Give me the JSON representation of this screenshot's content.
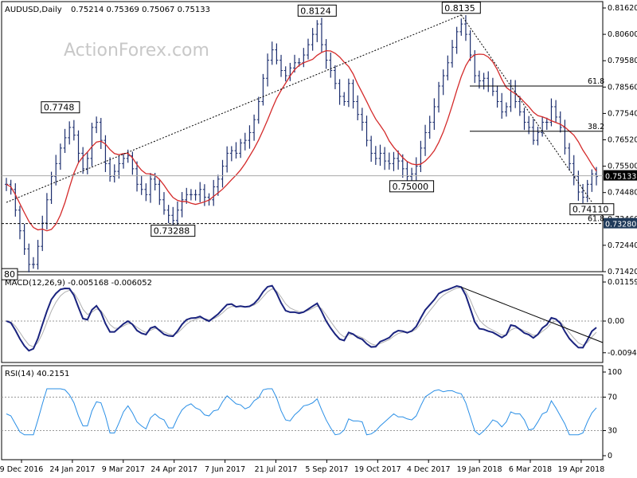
{
  "header": {
    "symbol": "AUDUSD,Daily",
    "ohlc": "0.75214 0.75369 0.75067 0.75133"
  },
  "watermark": "ActionForex.com",
  "macd_header": "MACD(12,26,9) -0.005168 -0.006052",
  "rsi_header": "RSI(14) 40.2151",
  "colors": {
    "price_bars": "#1c2e6e",
    "moving_average": "#d42a2a",
    "macd_line": "#1a237e",
    "macd_signal": "#b0b0b0",
    "rsi_line": "#2a8fe6",
    "grid": "#d0d0d0"
  },
  "chart_data": [
    {
      "type": "ohlc",
      "panel": "price",
      "y_ticks": [
        "0.81620",
        "0.80600",
        "0.79580",
        "0.78560",
        "0.77540",
        "0.76520",
        "0.75500",
        "0.74480",
        "0.73460",
        "0.72440",
        "0.71420"
      ],
      "current_price_label": "0.75133",
      "support_label": "0.73280",
      "ylim": [
        0.7142,
        0.8162
      ],
      "x_ticks": [
        "9 Dec 2016",
        "24 Jan 2017",
        "9 Mar 2017",
        "24 Apr 2017",
        "7 Jun 2017",
        "21 Jul 2017",
        "5 Sep 2017",
        "19 Oct 2017",
        "4 Dec 2017",
        "19 Jan 2018",
        "6 Mar 2018",
        "19 Apr 2018"
      ],
      "close_series": [
        0.748,
        0.746,
        0.738,
        0.73,
        0.723,
        0.717,
        0.717,
        0.724,
        0.733,
        0.742,
        0.751,
        0.756,
        0.762,
        0.766,
        0.77,
        0.767,
        0.76,
        0.754,
        0.758,
        0.77,
        0.772,
        0.765,
        0.756,
        0.751,
        0.753,
        0.756,
        0.758,
        0.759,
        0.754,
        0.748,
        0.746,
        0.744,
        0.75,
        0.748,
        0.742,
        0.738,
        0.736,
        0.734,
        0.738,
        0.742,
        0.744,
        0.744,
        0.744,
        0.746,
        0.743,
        0.742,
        0.747,
        0.75,
        0.755,
        0.76,
        0.761,
        0.76,
        0.764,
        0.765,
        0.768,
        0.773,
        0.78,
        0.789,
        0.796,
        0.8,
        0.796,
        0.792,
        0.79,
        0.793,
        0.795,
        0.795,
        0.798,
        0.802,
        0.806,
        0.81,
        0.802,
        0.796,
        0.792,
        0.787,
        0.782,
        0.78,
        0.787,
        0.78,
        0.775,
        0.772,
        0.765,
        0.76,
        0.758,
        0.76,
        0.757,
        0.756,
        0.758,
        0.757,
        0.754,
        0.751,
        0.752,
        0.755,
        0.762,
        0.768,
        0.772,
        0.778,
        0.786,
        0.79,
        0.795,
        0.801,
        0.807,
        0.81,
        0.806,
        0.798,
        0.79,
        0.788,
        0.789,
        0.786,
        0.784,
        0.78,
        0.776,
        0.778,
        0.786,
        0.78,
        0.776,
        0.772,
        0.77,
        0.765,
        0.768,
        0.772,
        0.772,
        0.778,
        0.774,
        0.77,
        0.762,
        0.756,
        0.751,
        0.745,
        0.743,
        0.748,
        0.752,
        0.751
      ]
    },
    {
      "type": "line",
      "panel": "macd",
      "y_ticks": [
        "0.01159",
        "0.00",
        "-0.009408"
      ],
      "ylim": [
        -0.01159,
        0.01159
      ]
    },
    {
      "type": "line",
      "panel": "rsi",
      "y_ticks": [
        "100",
        "70",
        "30",
        "0"
      ],
      "ylim": [
        0,
        100
      ]
    }
  ],
  "annotations": [
    {
      "text": "80",
      "price": 0.716
    },
    {
      "text": "0.7748",
      "price": 0.775
    },
    {
      "text": "0.73288",
      "price": 0.7328
    },
    {
      "text": "0.8124",
      "price": 0.8124
    },
    {
      "text": "0.75000",
      "price": 0.75
    },
    {
      "text": "0.8135",
      "price": 0.8135
    },
    {
      "text": "0.74110",
      "price": 0.7411
    }
  ],
  "fib_labels": [
    "61.8",
    "38.2",
    "61.8"
  ]
}
